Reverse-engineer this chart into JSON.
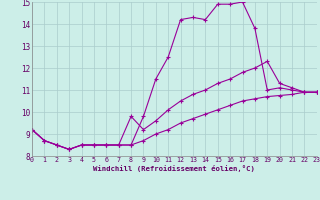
{
  "xlabel": "Windchill (Refroidissement éolien,°C)",
  "background_color": "#cceee8",
  "grid_color": "#aacccc",
  "line_color": "#990099",
  "xlim": [
    0,
    23
  ],
  "ylim": [
    8,
    15
  ],
  "yticks": [
    8,
    9,
    10,
    11,
    12,
    13,
    14,
    15
  ],
  "xticks": [
    0,
    1,
    2,
    3,
    4,
    5,
    6,
    7,
    8,
    9,
    10,
    11,
    12,
    13,
    14,
    15,
    16,
    17,
    18,
    19,
    20,
    21,
    22,
    23
  ],
  "series": [
    {
      "x": [
        0,
        1,
        2,
        3,
        4,
        5,
        6,
        7,
        8,
        9,
        10,
        11,
        12,
        13,
        14,
        15,
        16,
        17,
        18,
        19,
        20,
        21,
        22,
        23
      ],
      "y": [
        9.2,
        8.7,
        8.5,
        8.3,
        8.5,
        8.5,
        8.5,
        8.5,
        8.5,
        9.8,
        11.5,
        12.5,
        14.2,
        14.3,
        14.2,
        14.9,
        14.9,
        15.0,
        13.8,
        11.0,
        11.1,
        11.0,
        10.9,
        10.9
      ]
    },
    {
      "x": [
        0,
        1,
        2,
        3,
        4,
        5,
        6,
        7,
        8,
        9,
        10,
        11,
        12,
        13,
        14,
        15,
        16,
        17,
        18,
        19,
        20,
        21,
        22,
        23
      ],
      "y": [
        9.2,
        8.7,
        8.5,
        8.3,
        8.5,
        8.5,
        8.5,
        8.5,
        9.8,
        9.2,
        9.6,
        10.1,
        10.5,
        10.8,
        11.0,
        11.3,
        11.5,
        11.8,
        12.0,
        12.3,
        11.3,
        11.1,
        10.9,
        10.9
      ]
    },
    {
      "x": [
        0,
        1,
        2,
        3,
        4,
        5,
        6,
        7,
        8,
        9,
        10,
        11,
        12,
        13,
        14,
        15,
        16,
        17,
        18,
        19,
        20,
        21,
        22,
        23
      ],
      "y": [
        9.2,
        8.7,
        8.5,
        8.3,
        8.5,
        8.5,
        8.5,
        8.5,
        8.5,
        8.7,
        9.0,
        9.2,
        9.5,
        9.7,
        9.9,
        10.1,
        10.3,
        10.5,
        10.6,
        10.7,
        10.75,
        10.8,
        10.9,
        10.9
      ]
    }
  ]
}
